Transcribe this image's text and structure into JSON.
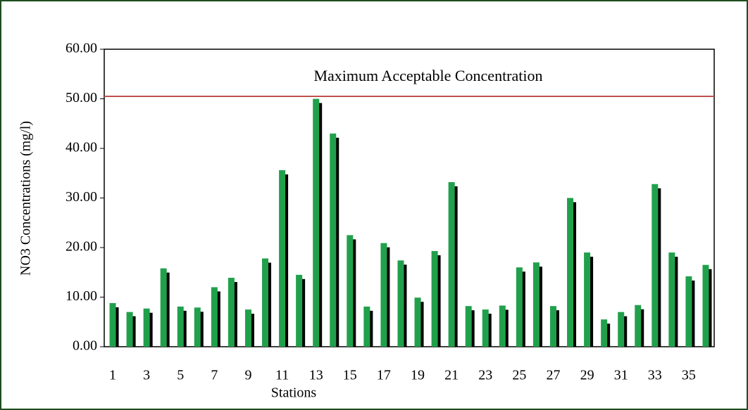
{
  "chart_data": {
    "type": "bar",
    "x_label": "Stations",
    "y_label": "NO3 Concentrations (mg/l)",
    "categories": [
      "1",
      null,
      "3",
      null,
      "5",
      null,
      "7",
      null,
      "9",
      null,
      "11",
      null,
      "13",
      null,
      "15",
      null,
      "17",
      null,
      "19",
      null,
      "21",
      null,
      "23",
      null,
      "25",
      null,
      "27",
      null,
      "29",
      null,
      "31",
      null,
      "33",
      null,
      "35",
      null
    ],
    "values": [
      8.8,
      7.0,
      7.7,
      15.8,
      8.1,
      7.9,
      12.0,
      13.9,
      7.5,
      17.8,
      35.6,
      14.5,
      50.0,
      43.0,
      22.5,
      8.1,
      20.9,
      17.4,
      9.9,
      19.3,
      33.2,
      8.2,
      7.5,
      8.3,
      16.0,
      17.0,
      8.2,
      30.0,
      19.0,
      5.5,
      7.0,
      8.4,
      32.8,
      19.0,
      14.2,
      16.5
    ],
    "color": "#21a04c",
    "ylim": [
      0,
      60
    ],
    "yticks": [
      {
        "value": 0,
        "label": "0.00"
      },
      {
        "value": 10,
        "label": "10.00"
      },
      {
        "value": 20,
        "label": "20.00"
      },
      {
        "value": 30,
        "label": "30.00"
      },
      {
        "value": 40,
        "label": "40.00"
      },
      {
        "value": 50,
        "label": "50.00"
      },
      {
        "value": 60,
        "label": "60.00"
      }
    ],
    "reference_line": {
      "label": "Maximum Acceptable Concentration",
      "value": 50.5,
      "color": "#c0504d"
    }
  }
}
